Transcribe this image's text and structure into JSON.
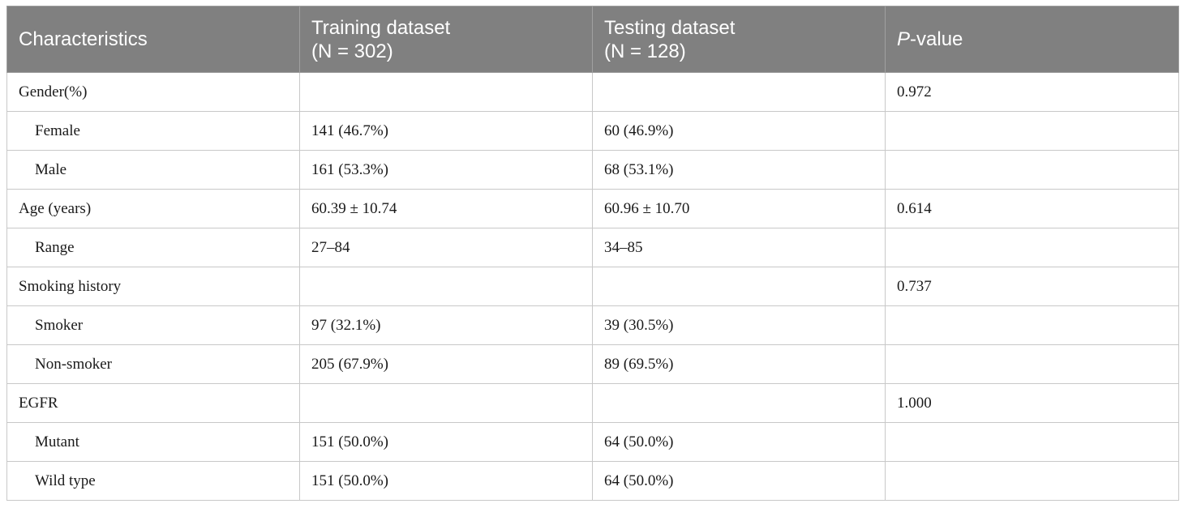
{
  "table": {
    "headers": {
      "col1": "Characteristics",
      "col2_line1": "Training dataset",
      "col2_line2": "(N = 302)",
      "col3_line1": "Testing dataset",
      "col3_line2": "(N = 128)",
      "col4_italic": "P",
      "col4_rest": "-value"
    },
    "rows": [
      {
        "label": "Gender(%)",
        "training": "",
        "testing": "",
        "p": "0.972",
        "indent": false
      },
      {
        "label": "Female",
        "training": "141 (46.7%)",
        "testing": "60 (46.9%)",
        "p": "",
        "indent": true
      },
      {
        "label": "Male",
        "training": "161 (53.3%)",
        "testing": "68 (53.1%)",
        "p": "",
        "indent": true
      },
      {
        "label": "Age (years)",
        "training": "60.39 ± 10.74",
        "testing": "60.96 ± 10.70",
        "p": "0.614",
        "indent": false
      },
      {
        "label": "Range",
        "training": "27–84",
        "testing": "34–85",
        "p": "",
        "indent": true
      },
      {
        "label": "Smoking history",
        "training": "",
        "testing": "",
        "p": "0.737",
        "indent": false
      },
      {
        "label": "Smoker",
        "training": "97 (32.1%)",
        "testing": "39 (30.5%)",
        "p": "",
        "indent": true
      },
      {
        "label": "Non-smoker",
        "training": "205 (67.9%)",
        "testing": "89 (69.5%)",
        "p": "",
        "indent": true
      },
      {
        "label": "EGFR",
        "training": "",
        "testing": "",
        "p": "1.000",
        "indent": false
      },
      {
        "label": "Mutant",
        "training": "151 (50.0%)",
        "testing": "64 (50.0%)",
        "p": "",
        "indent": true
      },
      {
        "label": "Wild type",
        "training": "151 (50.0%)",
        "testing": "64 (50.0%)",
        "p": "",
        "indent": true
      }
    ]
  }
}
